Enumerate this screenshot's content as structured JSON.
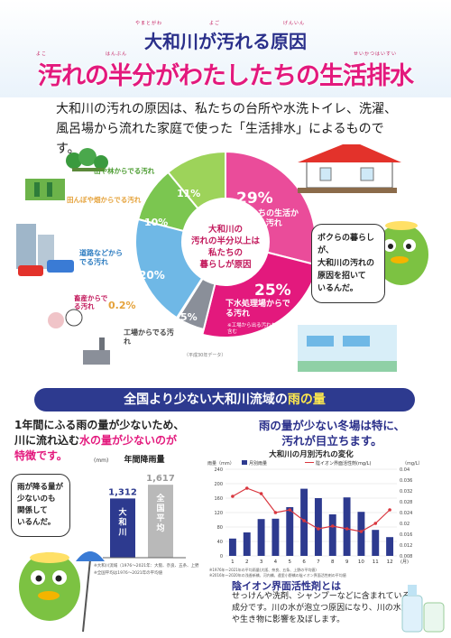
{
  "header": {
    "ruby_line1": [
      "やまとがわ",
      "よご",
      "げんいん"
    ],
    "title1": "大和川が汚れる原因",
    "ruby_line2": [
      "よこ",
      "はんぶん",
      "せいかつはいすい"
    ],
    "title2": "汚れの半分がわたしたちの生活排水"
  },
  "intro": "大和川の汚れの原因は、私たちの台所や水洗トイレ、洗濯、風呂場から流れた家庭で使った「生活排水」によるものです。",
  "donut": {
    "center_text": [
      "大和川の",
      "汚れの半分以上は",
      "私たちの",
      "暮らしが原因"
    ],
    "segments": [
      {
        "label": "私たちの生活からでる汚れ",
        "pct": "29%",
        "value": 29,
        "color": "#ea4c9a"
      },
      {
        "label": "下水処理場からでる汚れ",
        "pct": "25%",
        "value": 25,
        "color": "#e3197d",
        "note": "※工場から出る汚れを一部含む"
      },
      {
        "label": "工場からでる汚れ",
        "pct": "5%",
        "value": 5,
        "color": "#8a8f99"
      },
      {
        "label": "畜産からでる汚れ",
        "pct": "0.2%",
        "value": 0.2,
        "color": "#e5a23a"
      },
      {
        "label": "道路などからでる汚れ",
        "pct": "20%",
        "value": 20,
        "color": "#6fb8e6"
      },
      {
        "label": "田んぼや畑からでる汚れ",
        "pct": "10%",
        "value": 10,
        "color": "#7bc650"
      },
      {
        "label": "山や林からでる汚れ",
        "pct": "11%",
        "value": 11,
        "color": "#9dd35a"
      }
    ],
    "source_note": "（平成30年データ）"
  },
  "mascot_bubble_top": [
    "ボクらの暮らしが、",
    "大和川の汚れの",
    "原因を招いて",
    "いるんだ。"
  ],
  "section_bar": {
    "before": "全国より少ない大和川流域の",
    "highlight": "雨の量"
  },
  "left_text": {
    "line1": "1年間にふる雨の量が少ないため、",
    "line2a": "川に流れ込む",
    "line2b": "水の量が少ないのが",
    "line3": "特徴です。"
  },
  "right_text": {
    "line1": "雨の量が少ない冬場は特に、",
    "line2": "汚れが目立ちます。"
  },
  "mascot_bubble_bottom": [
    "雨が降る量が",
    "少ないのも",
    "関係して",
    "いるんだ。"
  ],
  "chart_data": [
    {
      "type": "bar",
      "title": "年間降雨量",
      "ylabel": "(mm)",
      "categories": [
        "大和川",
        "全国平均"
      ],
      "values": [
        1312,
        1617
      ],
      "value_labels": [
        "1,312",
        "1,617"
      ],
      "colors": [
        "#2d3a8f",
        "#b9b9b9"
      ],
      "notes": [
        "※大和川流域（1976～2021年：大阪、奈良、五条、上野の平均値",
        "※全国平均は1976～2021年の平均値"
      ]
    },
    {
      "type": "bar+line",
      "title": "大和川の月別汚れの変化",
      "y_left_label": "雨量（mm）",
      "y_right_label": "（mg/L）",
      "categories": [
        "1",
        "2",
        "3",
        "4",
        "5",
        "6",
        "7",
        "8",
        "9",
        "10",
        "11",
        "12"
      ],
      "x_unit": "(月)",
      "ylim_left": [
        0,
        240
      ],
      "ylim_right": [
        0.008,
        0.04
      ],
      "y_left_ticks": [
        "240",
        "200",
        "160",
        "120",
        "80",
        "40",
        "0"
      ],
      "y_right_ticks": [
        "0.04",
        "0.036",
        "0.032",
        "0.028",
        "0.024",
        "0.02",
        "0.016",
        "0.012",
        "0.008"
      ],
      "series": [
        {
          "name": "月別雨量",
          "kind": "bar",
          "color": "#2d3a8f",
          "values": [
            48,
            65,
            102,
            103,
            135,
            186,
            160,
            115,
            162,
            122,
            72,
            52
          ]
        },
        {
          "name": "陰イオン界面活性剤(mg/L)",
          "kind": "line",
          "color": "#d9363e",
          "values": [
            0.03,
            0.033,
            0.031,
            0.024,
            0.025,
            0.021,
            0.018,
            0.019,
            0.018,
            0.017,
            0.02,
            0.025
          ]
        }
      ],
      "notes": [
        "※1976年～2021年の平均雨量(大阪、奈良、五条、上野の平均値)",
        "※2016年～2020年の浅香新橋、河内橋、遠里小野橋の陰イオン界面活性剤の平均値"
      ]
    }
  ],
  "callout": {
    "title": "陰イオン界面活性剤とは",
    "text": "せっけんや洗剤、シャンプーなどに含まれている成分です。川の水が泡立つ原因になり、川の水質や生き物に影響を及ぼします。"
  }
}
